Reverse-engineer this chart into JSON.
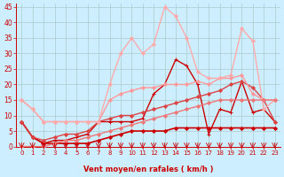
{
  "background_color": "#cceeff",
  "grid_color": "#aacccc",
  "xlabel": "Vent moyen/en rafales ( km/h )",
  "xlabel_color": "#cc0000",
  "tick_color": "#cc0000",
  "xlim": [
    -0.5,
    23.5
  ],
  "ylim": [
    0,
    46
  ],
  "yticks": [
    0,
    5,
    10,
    15,
    20,
    25,
    30,
    35,
    40,
    45
  ],
  "xticks": [
    0,
    1,
    2,
    3,
    4,
    5,
    6,
    7,
    8,
    9,
    10,
    11,
    12,
    13,
    14,
    15,
    16,
    17,
    18,
    19,
    20,
    21,
    22,
    23
  ],
  "lines": [
    {
      "x": [
        0,
        1,
        2,
        3,
        4,
        5,
        6,
        7,
        8,
        9,
        10,
        11,
        12,
        13,
        14,
        15,
        16,
        17,
        18,
        19,
        20,
        21,
        22,
        23
      ],
      "y": [
        8,
        3,
        1,
        1,
        1,
        1,
        1,
        2,
        3,
        4,
        5,
        5,
        5,
        5,
        6,
        6,
        6,
        6,
        6,
        6,
        6,
        6,
        6,
        6
      ],
      "color": "#cc0000",
      "linewidth": 1.2,
      "marker": "D",
      "markersize": 2.0
    },
    {
      "x": [
        0,
        1,
        2,
        3,
        4,
        5,
        6,
        7,
        8,
        9,
        10,
        11,
        12,
        13,
        14,
        15,
        16,
        17,
        18,
        19,
        20,
        21,
        22,
        23
      ],
      "y": [
        8,
        3,
        1,
        2,
        2,
        3,
        4,
        8,
        8,
        8,
        8,
        9,
        17,
        20,
        28,
        26,
        20,
        4,
        12,
        11,
        21,
        11,
        12,
        8
      ],
      "color": "#cc0000",
      "linewidth": 1.0,
      "marker": "+",
      "markersize": 3.5
    },
    {
      "x": [
        0,
        1,
        2,
        3,
        4,
        5,
        6,
        7,
        8,
        9,
        10,
        11,
        12,
        13,
        14,
        15,
        16,
        17,
        18,
        19,
        20,
        21,
        22,
        23
      ],
      "y": [
        8,
        3,
        2,
        3,
        4,
        4,
        5,
        8,
        9,
        10,
        10,
        11,
        12,
        13,
        14,
        15,
        16,
        17,
        18,
        20,
        21,
        19,
        15,
        8
      ],
      "color": "#dd4444",
      "linewidth": 1.0,
      "marker": "D",
      "markersize": 2.0
    },
    {
      "x": [
        0,
        1,
        2,
        3,
        4,
        5,
        6,
        7,
        8,
        9,
        10,
        11,
        12,
        13,
        14,
        15,
        16,
        17,
        18,
        19,
        20,
        21,
        22,
        23
      ],
      "y": [
        15,
        12,
        8,
        8,
        8,
        8,
        8,
        8,
        15,
        17,
        18,
        19,
        19,
        20,
        20,
        20,
        21,
        20,
        22,
        22,
        23,
        17,
        15,
        15
      ],
      "color": "#ff9999",
      "linewidth": 1.0,
      "marker": "D",
      "markersize": 2.0
    },
    {
      "x": [
        0,
        1,
        2,
        3,
        4,
        5,
        6,
        7,
        8,
        9,
        10,
        11,
        12,
        13,
        14,
        15,
        16,
        17,
        18,
        19,
        20,
        21,
        22,
        23
      ],
      "y": [
        15,
        12,
        8,
        8,
        8,
        8,
        8,
        8,
        20,
        30,
        35,
        30,
        33,
        45,
        42,
        35,
        24,
        22,
        22,
        23,
        38,
        34,
        12,
        15
      ],
      "color": "#ffaaaa",
      "linewidth": 1.0,
      "marker": "D",
      "markersize": 2.0
    },
    {
      "x": [
        0,
        1,
        2,
        3,
        4,
        5,
        6,
        7,
        8,
        9,
        10,
        11,
        12,
        13,
        14,
        15,
        16,
        17,
        18,
        19,
        20,
        21,
        22,
        23
      ],
      "y": [
        0,
        0,
        0,
        1,
        2,
        2,
        3,
        4,
        5,
        6,
        7,
        8,
        9,
        10,
        11,
        12,
        13,
        14,
        15,
        15,
        15,
        15,
        15,
        15
      ],
      "color": "#ee7777",
      "linewidth": 1.0,
      "marker": "D",
      "markersize": 2.0
    }
  ]
}
